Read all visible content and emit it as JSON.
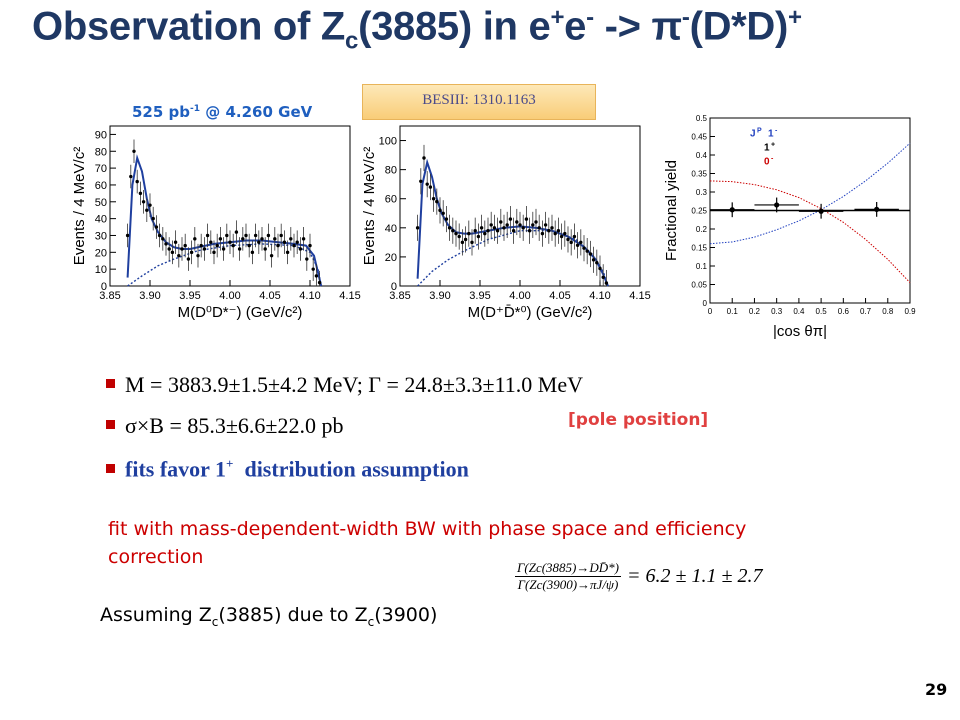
{
  "slide": {
    "title": {
      "pre": "Observation of Z",
      "sub": "c",
      "mid": "(3885) in e",
      "sup1": "+",
      "e2": "e",
      "sup2": "-",
      "arrow": " -> ",
      "pi": "π",
      "sup3": "-",
      "post": "(D*D)",
      "sup4": "+"
    },
    "lumi": {
      "pre": "525 pb",
      "sup": "-1",
      "post": " @ 4.260 GeV"
    },
    "besiii_label": "BESIII: 1310.1163",
    "bullets": [
      {
        "text": "M = 3883.9±1.5±4.2 MeV; Γ = 24.8±3.3±11.0 MeV"
      },
      {
        "text": "σ×B = 85.3±6.6±22.0 pb"
      },
      {
        "pre": "fits favor 1",
        "sup": "+",
        "post": "  distribution assumption"
      }
    ],
    "pole_label": "[pole position]",
    "fit_note": "fit with mass-dependent-width BW with phase space and efficiency correction",
    "assume": {
      "pre": "Assuming Z",
      "sub1": "c",
      "mid": "(3885) due to Z",
      "sub2": "c",
      "post": "(3900)"
    },
    "ratio": {
      "num": "Γ(Zc(3885)→DD̄*)",
      "den": "Γ(Zc(3900)→πJ/ψ)",
      "value": "= 6.2 ± 1.1 ± 2.7"
    },
    "page_number": "29",
    "colors": {
      "title": "#1f3864",
      "accent_red": "#cc0000",
      "fit_blue": "#1f3f9f",
      "lumi_blue": "#1f5fbf"
    }
  },
  "chart_data": [
    {
      "type": "scatter",
      "ylabel": "Events / 4 MeV/c²",
      "xlabel": "M(D⁰D*⁻) (GeV/c²)",
      "xlim": [
        3.85,
        4.15
      ],
      "ylim": [
        0,
        95
      ],
      "xticks": [
        "3.85",
        "3.90",
        "3.95",
        "4.00",
        "4.05",
        "4.10",
        "4.15"
      ],
      "yticks": [
        "0",
        "10",
        "20",
        "30",
        "40",
        "50",
        "60",
        "70",
        "80",
        "90"
      ],
      "x": [
        3.872,
        3.876,
        3.88,
        3.884,
        3.888,
        3.892,
        3.896,
        3.9,
        3.904,
        3.908,
        3.912,
        3.916,
        3.92,
        3.924,
        3.928,
        3.932,
        3.936,
        3.94,
        3.944,
        3.948,
        3.952,
        3.956,
        3.96,
        3.964,
        3.968,
        3.972,
        3.976,
        3.98,
        3.984,
        3.988,
        3.992,
        3.996,
        4.0,
        4.004,
        4.008,
        4.012,
        4.016,
        4.02,
        4.024,
        4.028,
        4.032,
        4.036,
        4.04,
        4.044,
        4.048,
        4.052,
        4.056,
        4.06,
        4.064,
        4.068,
        4.072,
        4.076,
        4.08,
        4.084,
        4.088,
        4.092,
        4.096,
        4.1,
        4.104,
        4.108,
        4.112
      ],
      "y": [
        30,
        65,
        80,
        62,
        55,
        50,
        45,
        48,
        40,
        35,
        30,
        28,
        25,
        22,
        20,
        26,
        18,
        22,
        24,
        16,
        20,
        28,
        18,
        24,
        22,
        30,
        26,
        20,
        24,
        28,
        22,
        30,
        26,
        24,
        32,
        22,
        28,
        30,
        24,
        20,
        30,
        26,
        28,
        22,
        30,
        18,
        28,
        24,
        30,
        26,
        20,
        28,
        24,
        26,
        22,
        28,
        16,
        24,
        10,
        6,
        2
      ],
      "yerr": 7,
      "fit_total": {
        "x": [
          3.872,
          3.878,
          3.884,
          3.89,
          3.896,
          3.902,
          3.91,
          3.92,
          3.93,
          3.94,
          3.95,
          3.96,
          3.98,
          4.0,
          4.02,
          4.04,
          4.06,
          4.08,
          4.095,
          4.105,
          4.11,
          4.114
        ],
        "y": [
          5,
          60,
          76,
          68,
          52,
          40,
          32,
          26,
          23,
          22,
          22,
          23,
          25,
          26,
          27,
          27,
          26,
          25,
          24,
          18,
          8,
          0
        ]
      },
      "fit_background": {
        "x": [
          3.872,
          3.89,
          3.91,
          3.93,
          3.96,
          4.0,
          4.04,
          4.08,
          4.1,
          4.11,
          4.114
        ],
        "y": [
          0,
          6,
          12,
          16,
          21,
          24,
          25,
          24,
          20,
          10,
          0
        ]
      }
    },
    {
      "type": "scatter",
      "ylabel": "Events / 4 MeV/c²",
      "xlabel": "M(D⁺D̄*⁰) (GeV/c²)",
      "xlim": [
        3.85,
        4.15
      ],
      "ylim": [
        0,
        110
      ],
      "xticks": [
        "3.85",
        "3.90",
        "3.95",
        "4.00",
        "4.05",
        "4.10",
        "4.15"
      ],
      "yticks": [
        "0",
        "20",
        "40",
        "60",
        "80",
        "100"
      ],
      "x": [
        3.872,
        3.876,
        3.88,
        3.884,
        3.888,
        3.892,
        3.896,
        3.9,
        3.904,
        3.908,
        3.912,
        3.916,
        3.92,
        3.924,
        3.928,
        3.932,
        3.936,
        3.94,
        3.944,
        3.948,
        3.952,
        3.956,
        3.96,
        3.964,
        3.968,
        3.972,
        3.976,
        3.98,
        3.984,
        3.988,
        3.992,
        3.996,
        4.0,
        4.004,
        4.008,
        4.012,
        4.016,
        4.02,
        4.024,
        4.028,
        4.032,
        4.036,
        4.04,
        4.044,
        4.048,
        4.052,
        4.056,
        4.06,
        4.064,
        4.068,
        4.072,
        4.076,
        4.08,
        4.084,
        4.088,
        4.092,
        4.096,
        4.1,
        4.104,
        4.108
      ],
      "y": [
        40,
        72,
        88,
        70,
        68,
        60,
        58,
        52,
        50,
        46,
        40,
        38,
        36,
        34,
        30,
        32,
        36,
        30,
        38,
        34,
        40,
        36,
        38,
        42,
        40,
        38,
        44,
        40,
        42,
        46,
        38,
        44,
        42,
        40,
        46,
        38,
        42,
        44,
        40,
        36,
        42,
        38,
        40,
        36,
        38,
        34,
        36,
        32,
        30,
        34,
        28,
        30,
        26,
        24,
        22,
        18,
        16,
        12,
        6,
        2
      ],
      "yerr": 9,
      "fit_total": {
        "x": [
          3.872,
          3.878,
          3.884,
          3.89,
          3.896,
          3.902,
          3.91,
          3.92,
          3.93,
          3.94,
          3.96,
          3.98,
          4.0,
          4.02,
          4.04,
          4.06,
          4.08,
          4.095,
          4.104,
          4.11
        ],
        "y": [
          5,
          70,
          85,
          75,
          60,
          50,
          42,
          37,
          36,
          36,
          38,
          40,
          41,
          40,
          38,
          34,
          27,
          18,
          8,
          0
        ]
      },
      "fit_background": {
        "x": [
          3.872,
          3.89,
          3.91,
          3.93,
          3.96,
          4.0,
          4.04,
          4.07,
          4.09,
          4.104,
          4.11
        ],
        "y": [
          0,
          10,
          18,
          24,
          32,
          38,
          38,
          32,
          22,
          10,
          0
        ]
      }
    },
    {
      "type": "scatter",
      "ylabel": "Fractional yield",
      "xlabel": "|cos θπ|",
      "xlim": [
        0,
        0.9
      ],
      "ylim": [
        0,
        0.5
      ],
      "xticks": [
        "0",
        "0.1",
        "0.2",
        "0.3",
        "0.4",
        "0.5",
        "0.6",
        "0.7",
        "0.8",
        "0.9"
      ],
      "yticks": [
        "0",
        "0.05",
        "0.1",
        "0.15",
        "0.2",
        "0.25",
        "0.3",
        "0.35",
        "0.4",
        "0.45",
        "0.5"
      ],
      "legend": {
        "title": "J",
        "title_sup": "P",
        "entries": [
          {
            "label": "1",
            "sup": "-",
            "color": "#1f3fbf"
          },
          {
            "label": "1",
            "sup": "+",
            "color": "#000000"
          },
          {
            "label": "0",
            "sup": "-",
            "color": "#cc0000"
          }
        ]
      },
      "points": {
        "x": [
          0.1,
          0.3,
          0.5,
          0.75
        ],
        "y": [
          0.252,
          0.265,
          0.248,
          0.253
        ],
        "xerr": 0.1,
        "yerr": 0.02
      },
      "curve_1plus": {
        "x": [
          0,
          0.9
        ],
        "y": [
          0.25,
          0.25
        ]
      },
      "curve_1minus": {
        "x": [
          0,
          0.1,
          0.2,
          0.3,
          0.4,
          0.5,
          0.6,
          0.7,
          0.8,
          0.9
        ],
        "y": [
          0.16,
          0.165,
          0.178,
          0.198,
          0.222,
          0.252,
          0.288,
          0.33,
          0.378,
          0.432
        ]
      },
      "curve_0minus": {
        "x": [
          0,
          0.1,
          0.2,
          0.3,
          0.4,
          0.5,
          0.6,
          0.7,
          0.8,
          0.9
        ],
        "y": [
          0.33,
          0.328,
          0.32,
          0.306,
          0.285,
          0.255,
          0.218,
          0.172,
          0.118,
          0.055
        ]
      }
    }
  ]
}
